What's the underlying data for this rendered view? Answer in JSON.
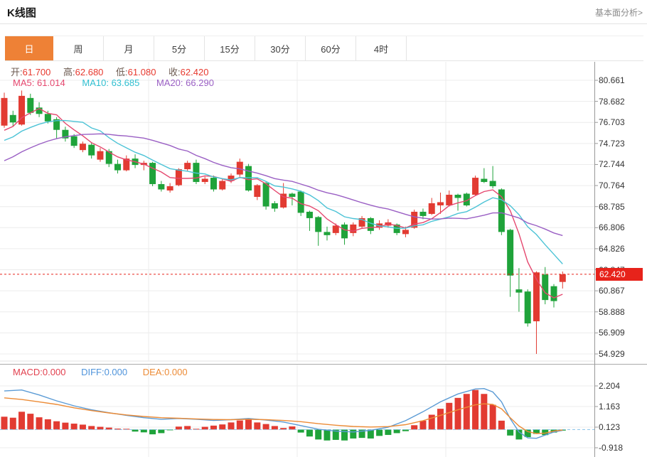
{
  "header": {
    "title": "K线图",
    "link": "基本面分析>"
  },
  "tabs": [
    {
      "id": "day",
      "label": "日",
      "active": true
    },
    {
      "id": "week",
      "label": "周",
      "active": false
    },
    {
      "id": "month",
      "label": "月",
      "active": false
    },
    {
      "id": "5min",
      "label": "5分",
      "active": false
    },
    {
      "id": "15min",
      "label": "15分",
      "active": false
    },
    {
      "id": "30min",
      "label": "30分",
      "active": false
    },
    {
      "id": "60min",
      "label": "60分",
      "active": false
    },
    {
      "id": "4hour",
      "label": "4时",
      "active": false
    }
  ],
  "readout": {
    "ohlc": [
      {
        "label": "开:",
        "value": "61.700"
      },
      {
        "label": "高:",
        "value": "62.680"
      },
      {
        "label": "低:",
        "value": "61.080"
      },
      {
        "label": "收:",
        "value": "62.420"
      }
    ],
    "ma": [
      {
        "label": "MA5:",
        "value": "61.014",
        "color": "#e5476e"
      },
      {
        "label": "MA10:",
        "value": "63.685",
        "color": "#2fbfd0"
      },
      {
        "label": "MA20:",
        "value": "66.290",
        "color": "#9a5fc4"
      }
    ],
    "macd": [
      {
        "label": "MACD:",
        "value": "0.000",
        "color": "#e2414f"
      },
      {
        "label": "DIFF:",
        "value": "0.000",
        "color": "#4f94db"
      },
      {
        "label": "DEA:",
        "value": "0.000",
        "color": "#ec8b36"
      }
    ]
  },
  "price_badge": {
    "value": "62.420"
  },
  "colors": {
    "accent": "#ee8136",
    "up": "#e23b32",
    "down": "#1fa33a",
    "ma5": "#e5476e",
    "ma10": "#4cc3d6",
    "ma20": "#9a5fc4",
    "diff": "#5b9bd5",
    "dea": "#ec8b36",
    "grid": "#ececec",
    "axis": "#999999",
    "separator_light": "#e2e2e2",
    "separator_dark": "#ababab",
    "tick_text": "#333333",
    "price_line": "#e7231b",
    "zero_dash": "#85c1e8"
  },
  "chart_data": {
    "type": "candlestick",
    "title": "K线图",
    "interval_selected": "日",
    "main": {
      "y_tick_values": [
        80.661,
        78.682,
        76.703,
        74.723,
        72.744,
        70.764,
        68.785,
        66.806,
        64.826,
        62.847,
        60.867,
        58.888,
        56.909,
        54.929
      ],
      "y_tick_labels": [
        "80.661",
        "78.682",
        "76.703",
        "74.723",
        "72.744",
        "70.764",
        "68.785",
        "66.806",
        "64.826",
        "62.847",
        "60.867",
        "58.888",
        "56.909",
        "54.929"
      ],
      "current_price": 62.42,
      "ohlc_last": {
        "open": 61.7,
        "high": 62.68,
        "low": 61.08,
        "close": 62.42
      },
      "ma_values": {
        "ma5": 61.014,
        "ma10": 63.685,
        "ma20": 66.29
      },
      "ma_periods": [
        5,
        10,
        20
      ],
      "prehistory_closes": [
        69.0,
        69.4,
        69.8,
        70.2,
        70.6,
        71.0,
        71.4,
        71.8,
        72.2,
        72.6,
        73.0,
        73.4,
        73.8,
        74.1,
        74.4,
        74.6,
        74.9,
        75.1,
        75.3,
        75.5
      ],
      "candles": [
        [
          76.4,
          79.5,
          76.2,
          79.0
        ],
        [
          77.4,
          77.8,
          76.3,
          76.7
        ],
        [
          76.5,
          79.7,
          76.4,
          79.2
        ],
        [
          79.0,
          79.4,
          77.4,
          77.6
        ],
        [
          78.1,
          78.6,
          77.2,
          77.5
        ],
        [
          77.5,
          77.8,
          76.6,
          76.8
        ],
        [
          77.0,
          77.2,
          75.2,
          76.0
        ],
        [
          76.0,
          76.3,
          74.9,
          75.2
        ],
        [
          75.4,
          75.6,
          74.3,
          74.5
        ],
        [
          74.1,
          74.9,
          73.9,
          74.7
        ],
        [
          74.6,
          74.8,
          73.3,
          73.6
        ],
        [
          73.2,
          74.3,
          73.0,
          74.0
        ],
        [
          74.0,
          74.2,
          72.5,
          72.8
        ],
        [
          72.8,
          73.2,
          71.9,
          72.2
        ],
        [
          72.2,
          73.6,
          72.1,
          73.3
        ],
        [
          73.3,
          73.7,
          72.4,
          72.7
        ],
        [
          72.7,
          73.1,
          72.2,
          72.9
        ],
        [
          72.9,
          73.0,
          70.7,
          70.9
        ],
        [
          70.9,
          71.2,
          70.2,
          70.4
        ],
        [
          70.3,
          71.0,
          70.1,
          70.7
        ],
        [
          70.8,
          72.4,
          70.7,
          72.3
        ],
        [
          72.3,
          73.1,
          72.1,
          72.9
        ],
        [
          72.9,
          73.2,
          70.9,
          71.1
        ],
        [
          71.1,
          71.6,
          70.9,
          71.4
        ],
        [
          71.5,
          71.7,
          70.2,
          70.4
        ],
        [
          70.4,
          71.4,
          70.3,
          71.2
        ],
        [
          71.2,
          71.9,
          71.0,
          71.7
        ],
        [
          71.8,
          73.3,
          71.6,
          73.0
        ],
        [
          72.6,
          72.8,
          70.2,
          70.3
        ],
        [
          69.7,
          70.9,
          69.4,
          70.8
        ],
        [
          71.0,
          71.1,
          68.5,
          68.8
        ],
        [
          69.1,
          69.3,
          68.3,
          68.6
        ],
        [
          68.7,
          71.0,
          68.6,
          70.0
        ],
        [
          70.0,
          70.1,
          68.9,
          69.7
        ],
        [
          70.2,
          70.3,
          67.9,
          68.2
        ],
        [
          68.3,
          68.4,
          66.5,
          67.7
        ],
        [
          67.8,
          67.9,
          65.1,
          66.4
        ],
        [
          66.4,
          66.9,
          65.6,
          66.1
        ],
        [
          66.3,
          67.2,
          66.1,
          67.0
        ],
        [
          67.1,
          67.3,
          65.2,
          65.8
        ],
        [
          66.3,
          67.3,
          66.0,
          67.1
        ],
        [
          66.9,
          67.9,
          66.7,
          67.7
        ],
        [
          67.7,
          67.8,
          66.2,
          66.5
        ],
        [
          66.8,
          67.5,
          66.6,
          67.2
        ],
        [
          67.0,
          67.6,
          66.8,
          67.3
        ],
        [
          67.1,
          67.2,
          66.1,
          66.3
        ],
        [
          66.2,
          66.9,
          65.9,
          66.6
        ],
        [
          66.8,
          68.5,
          66.7,
          68.3
        ],
        [
          68.3,
          68.6,
          67.6,
          67.9
        ],
        [
          68.1,
          69.6,
          68.0,
          69.1
        ],
        [
          68.9,
          70.1,
          68.1,
          69.2
        ],
        [
          68.9,
          70.3,
          68.8,
          69.9
        ],
        [
          69.9,
          70.0,
          68.4,
          69.6
        ],
        [
          70.0,
          70.1,
          68.8,
          68.9
        ],
        [
          69.9,
          71.7,
          69.8,
          71.5
        ],
        [
          71.4,
          72.4,
          71.0,
          71.1
        ],
        [
          71.2,
          72.6,
          70.5,
          70.7
        ],
        [
          70.4,
          70.5,
          66.1,
          66.4
        ],
        [
          66.6,
          66.7,
          60.3,
          62.3
        ],
        [
          61.0,
          63.0,
          58.9,
          60.7
        ],
        [
          60.8,
          61.0,
          57.5,
          57.8
        ],
        [
          58.0,
          62.7,
          54.93,
          62.6
        ],
        [
          62.4,
          63.1,
          59.6,
          60.0
        ],
        [
          61.3,
          61.5,
          59.3,
          59.9
        ],
        [
          61.7,
          62.68,
          61.08,
          62.42
        ]
      ]
    },
    "macd": {
      "readout": {
        "macd": 0.0,
        "diff": 0.0,
        "dea": 0.0
      },
      "y_tick_values": [
        2.204,
        1.163,
        0.123,
        -0.918
      ],
      "y_tick_labels": [
        "2.204",
        "1.163",
        "0.123",
        "-0.918"
      ],
      "histogram": [
        0.65,
        0.6,
        0.9,
        0.8,
        0.62,
        0.52,
        0.42,
        0.35,
        0.3,
        0.25,
        0.18,
        0.14,
        0.1,
        0.05,
        0.04,
        -0.1,
        -0.14,
        -0.24,
        -0.18,
        -0.03,
        0.15,
        0.18,
        0.04,
        0.14,
        0.2,
        0.26,
        0.36,
        0.46,
        0.52,
        0.36,
        0.28,
        0.18,
        0.08,
        0.16,
        -0.15,
        -0.35,
        -0.5,
        -0.55,
        -0.52,
        -0.55,
        -0.45,
        -0.42,
        -0.45,
        -0.32,
        -0.27,
        -0.18,
        -0.08,
        0.22,
        0.45,
        0.75,
        1.05,
        1.35,
        1.6,
        1.8,
        2.0,
        1.8,
        1.25,
        0.45,
        -0.3,
        -0.5,
        -0.38,
        -0.22,
        -0.28,
        -0.15,
        -0.05
      ],
      "diff_line": [
        [
          0,
          1.95
        ],
        [
          2,
          2.0
        ],
        [
          4,
          1.75
        ],
        [
          6,
          1.45
        ],
        [
          8,
          1.2
        ],
        [
          10,
          1.0
        ],
        [
          12,
          0.85
        ],
        [
          14,
          0.72
        ],
        [
          16,
          0.6
        ],
        [
          18,
          0.52
        ],
        [
          20,
          0.56
        ],
        [
          22,
          0.52
        ],
        [
          24,
          0.46
        ],
        [
          26,
          0.5
        ],
        [
          28,
          0.56
        ],
        [
          30,
          0.48
        ],
        [
          32,
          0.38
        ],
        [
          34,
          0.2
        ],
        [
          36,
          0.02
        ],
        [
          38,
          -0.08
        ],
        [
          40,
          -0.12
        ],
        [
          42,
          -0.04
        ],
        [
          44,
          0.12
        ],
        [
          46,
          0.45
        ],
        [
          48,
          0.9
        ],
        [
          50,
          1.4
        ],
        [
          52,
          1.8
        ],
        [
          54,
          2.05
        ],
        [
          55,
          2.07
        ],
        [
          56,
          1.9
        ],
        [
          57,
          1.4
        ],
        [
          58,
          0.55
        ],
        [
          59,
          -0.12
        ],
        [
          60,
          -0.42
        ],
        [
          61,
          -0.44
        ],
        [
          62,
          -0.28
        ],
        [
          63,
          -0.12
        ],
        [
          64,
          -0.04
        ]
      ],
      "dea_line": [
        [
          0,
          1.6
        ],
        [
          2,
          1.52
        ],
        [
          4,
          1.4
        ],
        [
          6,
          1.27
        ],
        [
          8,
          1.1
        ],
        [
          10,
          0.96
        ],
        [
          12,
          0.84
        ],
        [
          14,
          0.74
        ],
        [
          16,
          0.66
        ],
        [
          18,
          0.6
        ],
        [
          20,
          0.57
        ],
        [
          22,
          0.54
        ],
        [
          24,
          0.51
        ],
        [
          26,
          0.5
        ],
        [
          28,
          0.52
        ],
        [
          30,
          0.5
        ],
        [
          32,
          0.46
        ],
        [
          34,
          0.4
        ],
        [
          36,
          0.3
        ],
        [
          38,
          0.22
        ],
        [
          40,
          0.16
        ],
        [
          42,
          0.13
        ],
        [
          44,
          0.15
        ],
        [
          46,
          0.25
        ],
        [
          48,
          0.45
        ],
        [
          50,
          0.72
        ],
        [
          52,
          1.0
        ],
        [
          54,
          1.25
        ],
        [
          55,
          1.3
        ],
        [
          56,
          1.27
        ],
        [
          57,
          1.05
        ],
        [
          58,
          0.6
        ],
        [
          59,
          0.18
        ],
        [
          60,
          -0.1
        ],
        [
          61,
          -0.2
        ],
        [
          62,
          -0.18
        ],
        [
          63,
          -0.08
        ],
        [
          64,
          -0.02
        ]
      ]
    }
  }
}
